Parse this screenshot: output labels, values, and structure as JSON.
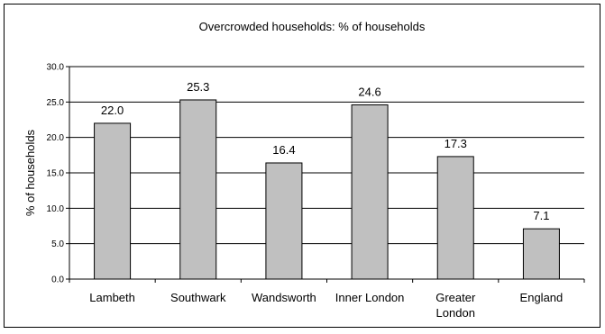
{
  "chart_data": {
    "type": "bar",
    "title": "Overcrowded households: % of households",
    "xlabel": "",
    "ylabel": "% of households",
    "categories": [
      [
        "Lambeth"
      ],
      [
        "Southwark"
      ],
      [
        "Wandsworth"
      ],
      [
        "Inner London"
      ],
      [
        "Greater",
        "London"
      ],
      [
        "England"
      ]
    ],
    "values": [
      22.0,
      25.3,
      16.4,
      24.6,
      17.3,
      7.1
    ],
    "value_labels": [
      "22.0",
      "25.3",
      "16.4",
      "24.6",
      "17.3",
      "7.1"
    ],
    "ylim": [
      0,
      30
    ],
    "yticks": [
      "0.0",
      "5.0",
      "10.0",
      "15.0",
      "20.0",
      "25.0",
      "30.0"
    ],
    "grid": true,
    "legend": "none",
    "colors": {
      "bar_fill": "#c0c0c0",
      "bar_stroke": "#000000",
      "grid": "#000000",
      "background": "#ffffff"
    }
  }
}
